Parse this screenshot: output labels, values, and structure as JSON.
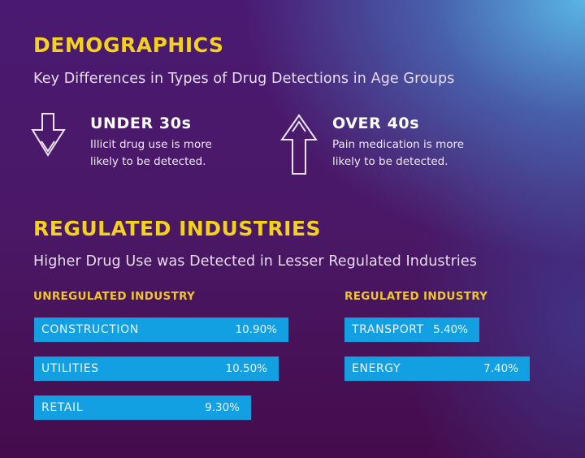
{
  "demographics": {
    "title": "DEMOGRAPHICS",
    "subtitle": "Key Differences in Types of Drug Detections in Age Groups",
    "groups": [
      {
        "icon": "arrow-down-icon",
        "title": "UNDER 30s",
        "line1": "Illicit drug use is more",
        "line2": "likely to be detected."
      },
      {
        "icon": "arrow-up-icon",
        "title": "OVER 40s",
        "line1": "Pain medication is more",
        "line2": "likely to be detected."
      }
    ]
  },
  "industries": {
    "title": "REGULATED INDUSTRIES",
    "subtitle": "Higher Drug Use was Detected in Lesser Regulated Industries"
  },
  "colors": {
    "heading": "#f3d21e",
    "bar": "#12a0e2",
    "background_top": "#4a1a72",
    "background_accent": "#5abeeb"
  },
  "chart_data": [
    {
      "type": "bar",
      "orientation": "horizontal",
      "title": "UNREGULATED INDUSTRY",
      "categories": [
        "CONSTRUCTION",
        "UTILITIES",
        "RETAIL"
      ],
      "values": [
        10.9,
        10.5,
        9.3
      ],
      "value_labels": [
        "10.90%",
        "10.50%",
        "9.30%"
      ],
      "unit": "%",
      "grid": false
    },
    {
      "type": "bar",
      "orientation": "horizontal",
      "title": "REGULATED INDUSTRY",
      "categories": [
        "TRANSPORT",
        "ENERGY"
      ],
      "values": [
        5.4,
        7.4
      ],
      "value_labels": [
        "5.40%",
        "7.40%"
      ],
      "unit": "%",
      "grid": false
    }
  ]
}
